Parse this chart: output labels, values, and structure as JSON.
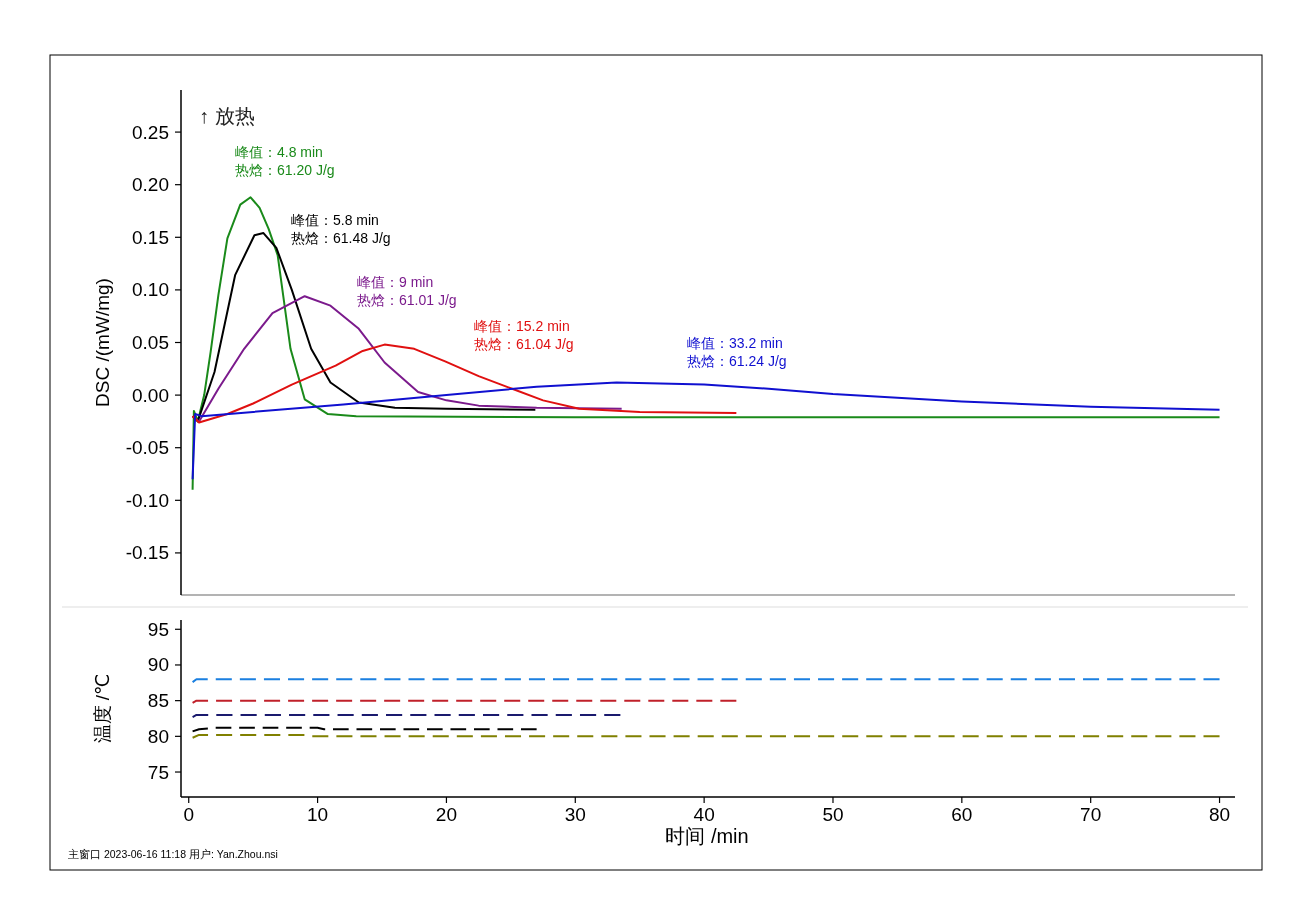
{
  "chart_data": [
    {
      "type": "line",
      "ylabel": "DSC  /(mW/mg)",
      "xlim": [
        -0.6,
        81.2
      ],
      "ylim": [
        -0.19,
        0.29
      ],
      "tick_labels": "y",
      "yticks": [
        {
          "value": -0.15,
          "label": "-0.15"
        },
        {
          "value": -0.1,
          "label": "-0.10"
        },
        {
          "value": -0.05,
          "label": "-0.05"
        },
        {
          "value": 0,
          "label": "0.00"
        },
        {
          "value": 0.05,
          "label": "0.05"
        },
        {
          "value": 0.1,
          "label": "0.10"
        },
        {
          "value": 0.15,
          "label": "0.15"
        },
        {
          "value": 0.2,
          "label": "0.20"
        },
        {
          "value": 0.25,
          "label": "0.25"
        }
      ],
      "annotations": [
        "↑ 放热",
        "峰值：4.8 min\n热焓：61.20 J/g",
        "峰值：5.8 min\n热焓：61.48 J/g",
        "峰值：9 min\n热焓：61.01 J/g",
        "峰值：15.2 min\n热焓：61.04 J/g",
        "峰值：33.2 min\n热焓：61.24 J/g"
      ],
      "series": [
        {
          "color": "#1a8a1a",
          "x": [
            0.3,
            0.4,
            0.7,
            1.2,
            1.7,
            2.3,
            3.0,
            4.0,
            4.8,
            5.5,
            6.2,
            6.9,
            7.9,
            9.0,
            10.8,
            13,
            30,
            60,
            80
          ],
          "values": [
            -0.09,
            -0.015,
            -0.025,
            0.0,
            0.041,
            0.095,
            0.149,
            0.181,
            0.188,
            0.178,
            0.158,
            0.133,
            0.044,
            -0.004,
            -0.018,
            -0.02,
            -0.021,
            -0.021,
            -0.021
          ]
        },
        {
          "color": "#000000",
          "x": [
            0.3,
            0.7,
            2.0,
            3.6,
            5.1,
            5.8,
            6.8,
            8.0,
            9.5,
            11.0,
            13.2,
            16,
            20,
            26.9
          ],
          "values": [
            -0.02,
            -0.025,
            0.022,
            0.114,
            0.152,
            0.154,
            0.14,
            0.1,
            0.044,
            0.012,
            -0.007,
            -0.012,
            -0.013,
            -0.014
          ]
        },
        {
          "color": "#7b1a8c",
          "x": [
            0.3,
            0.8,
            2.3,
            4.3,
            6.5,
            9.0,
            11.0,
            13.2,
            15.2,
            17.8,
            20,
            22.5,
            27,
            33.6
          ],
          "values": [
            -0.02,
            -0.025,
            0.006,
            0.044,
            0.078,
            0.094,
            0.085,
            0.063,
            0.031,
            0.003,
            -0.005,
            -0.01,
            -0.012,
            -0.013
          ]
        },
        {
          "color": "#e01010",
          "x": [
            0.3,
            0.8,
            3,
            5,
            8,
            11.4,
            13.5,
            15.2,
            17.5,
            19.9,
            22.5,
            25.1,
            27.5,
            30.3,
            35,
            42.5
          ],
          "values": [
            -0.02,
            -0.026,
            -0.018,
            -0.008,
            0.01,
            0.028,
            0.042,
            0.048,
            0.044,
            0.032,
            0.018,
            0.006,
            -0.005,
            -0.013,
            -0.016,
            -0.017
          ]
        },
        {
          "color": "#1010d0",
          "x": [
            0.3,
            0.5,
            1,
            5,
            12,
            20,
            27,
            33.2,
            40,
            45,
            50,
            60,
            70,
            80
          ],
          "values": [
            -0.08,
            -0.018,
            -0.02,
            -0.016,
            -0.009,
            0.0,
            0.008,
            0.012,
            0.01,
            0.006,
            0.001,
            -0.006,
            -0.011,
            -0.014
          ]
        }
      ]
    },
    {
      "type": "line",
      "xlabel": "时间 /min",
      "ylabel": "温度 /℃",
      "xlim": [
        -0.6,
        81.2
      ],
      "ylim": [
        71.5,
        96.3
      ],
      "line_style": "dashed",
      "xticks": [
        0,
        10,
        20,
        30,
        40,
        50,
        60,
        70,
        80
      ],
      "yticks": [
        75,
        80,
        85,
        90,
        95
      ],
      "annotations": [
        "主窗口    2023-06-16 11:18    用户: Yan.Zhou.nsi"
      ],
      "series": [
        {
          "color": "#1a7fe0",
          "x": [
            0.3,
            0.6,
            80
          ],
          "values": [
            87.6,
            88,
            88
          ]
        },
        {
          "color": "#c0202a",
          "x": [
            0.3,
            0.6,
            42.5
          ],
          "values": [
            84.7,
            85,
            85
          ]
        },
        {
          "color": "#1a1a6e",
          "x": [
            0.3,
            0.6,
            33.5
          ],
          "values": [
            82.7,
            83,
            83
          ]
        },
        {
          "color": "#000000",
          "x": [
            0.3,
            0.8,
            2,
            10,
            10.5,
            27
          ],
          "values": [
            80.7,
            81,
            81.2,
            81.2,
            81,
            81
          ]
        },
        {
          "color": "#808000",
          "x": [
            0.3,
            0.8,
            9,
            9.5,
            80
          ],
          "values": [
            79.8,
            80.2,
            80.2,
            80,
            80
          ]
        }
      ]
    }
  ]
}
